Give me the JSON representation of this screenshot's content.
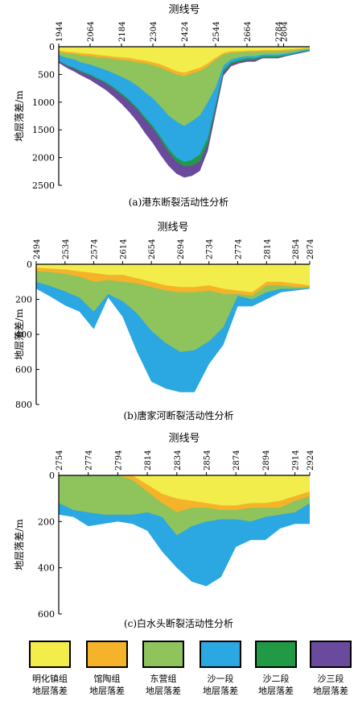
{
  "chart_data": [
    {
      "type": "area",
      "stacked": true,
      "title": "测线号",
      "caption": "(a)港东断裂活动性分析",
      "ylabel": "地层落差/m",
      "ylim": [
        0,
        2500
      ],
      "yticks": [
        0,
        500,
        1000,
        1500,
        2000,
        2500
      ],
      "xlim": [
        1944,
        2904
      ],
      "xticks": [
        1944,
        2064,
        2184,
        2304,
        2424,
        2544,
        2664,
        2784,
        2804
      ],
      "x": [
        1944,
        1974,
        2004,
        2034,
        2064,
        2094,
        2124,
        2154,
        2184,
        2214,
        2244,
        2274,
        2304,
        2334,
        2364,
        2394,
        2424,
        2454,
        2484,
        2514,
        2544,
        2574,
        2604,
        2634,
        2664,
        2694,
        2724,
        2754,
        2784,
        2814,
        2844,
        2874,
        2904
      ],
      "series": [
        {
          "name": "明化镇组地层落差",
          "key": "minghuazhen",
          "values": [
            70,
            90,
            100,
            120,
            130,
            150,
            160,
            180,
            190,
            200,
            230,
            250,
            280,
            320,
            380,
            440,
            470,
            420,
            380,
            300,
            200,
            110,
            80,
            80,
            70,
            70,
            60,
            60,
            60,
            50,
            40,
            30,
            20
          ]
        },
        {
          "name": "馆陶组地层落差",
          "key": "guantao",
          "values": [
            20,
            30,
            30,
            40,
            40,
            40,
            40,
            40,
            50,
            50,
            50,
            50,
            50,
            60,
            60,
            60,
            60,
            60,
            60,
            50,
            40,
            30,
            30,
            20,
            20,
            20,
            20,
            20,
            20,
            20,
            20,
            10,
            10
          ]
        },
        {
          "name": "东营组地层落差",
          "key": "dongying",
          "values": [
            60,
            80,
            100,
            130,
            150,
            180,
            220,
            260,
            300,
            360,
            420,
            520,
            600,
            700,
            800,
            850,
            900,
            860,
            800,
            650,
            500,
            200,
            120,
            90,
            80,
            80,
            60,
            60,
            60,
            50,
            40,
            30,
            20
          ]
        },
        {
          "name": "沙一段地层落差",
          "key": "shayi",
          "values": [
            100,
            130,
            150,
            160,
            180,
            200,
            220,
            250,
            300,
            350,
            400,
            450,
            500,
            550,
            600,
            650,
            650,
            700,
            700,
            650,
            300,
            80,
            50,
            50,
            40,
            40,
            30,
            30,
            30,
            30,
            20,
            20,
            10
          ]
        },
        {
          "name": "沙二段地层落差",
          "key": "shaer",
          "values": [
            10,
            10,
            20,
            20,
            20,
            20,
            20,
            30,
            30,
            30,
            30,
            40,
            40,
            50,
            60,
            70,
            80,
            100,
            130,
            100,
            60,
            40,
            30,
            30,
            30,
            30,
            20,
            20,
            20,
            10,
            10,
            10,
            10
          ]
        },
        {
          "name": "沙三段地层落差",
          "key": "shasan",
          "values": [
            30,
            40,
            50,
            60,
            80,
            100,
            120,
            140,
            160,
            190,
            220,
            250,
            270,
            280,
            250,
            220,
            200,
            190,
            170,
            130,
            100,
            60,
            40,
            30,
            30,
            30,
            20,
            20,
            20,
            10,
            10,
            10,
            10
          ]
        }
      ]
    },
    {
      "type": "area",
      "stacked": true,
      "title": "测线号",
      "caption": "(b)唐家河断裂活动性分析",
      "ylabel": "地层落差/m",
      "ylim": [
        0,
        800
      ],
      "yticks": [
        0,
        200,
        400,
        600,
        800
      ],
      "xlim": [
        2494,
        2874
      ],
      "xticks": [
        2494,
        2534,
        2574,
        2614,
        2654,
        2694,
        2734,
        2774,
        2814,
        2854,
        2874
      ],
      "x": [
        2494,
        2514,
        2534,
        2554,
        2574,
        2594,
        2614,
        2634,
        2654,
        2674,
        2694,
        2714,
        2734,
        2754,
        2774,
        2794,
        2814,
        2834,
        2854,
        2874
      ],
      "series": [
        {
          "name": "明化镇组地层落差",
          "key": "minghuazhen",
          "values": [
            20,
            25,
            30,
            40,
            50,
            60,
            60,
            80,
            100,
            120,
            130,
            130,
            120,
            140,
            150,
            160,
            100,
            100,
            110,
            120
          ]
        },
        {
          "name": "馆陶组地层落差",
          "key": "guantao",
          "values": [
            20,
            20,
            25,
            30,
            50,
            30,
            40,
            30,
            30,
            30,
            30,
            30,
            30,
            30,
            20,
            20,
            20,
            20,
            20,
            10
          ]
        },
        {
          "name": "东营组地层落差",
          "key": "dongying",
          "values": [
            60,
            80,
            100,
            120,
            170,
            80,
            110,
            170,
            250,
            300,
            340,
            330,
            290,
            190,
            10,
            20,
            40,
            20,
            10,
            5
          ]
        },
        {
          "name": "沙一段地层落差",
          "key": "shayi",
          "values": [
            40,
            60,
            80,
            80,
            100,
            20,
            90,
            220,
            290,
            260,
            230,
            240,
            130,
            100,
            60,
            40,
            40,
            20,
            10,
            5
          ]
        }
      ]
    },
    {
      "type": "area",
      "stacked": true,
      "title": "测线号",
      "caption": "(c)白水头断裂活动性分析",
      "ylabel": "地层落差/m",
      "ylim": [
        0,
        600
      ],
      "yticks": [
        0,
        200,
        400,
        600
      ],
      "xlim": [
        2754,
        2924
      ],
      "xticks": [
        2754,
        2774,
        2794,
        2814,
        2834,
        2854,
        2874,
        2894,
        2914,
        2924
      ],
      "x": [
        2754,
        2764,
        2774,
        2784,
        2794,
        2804,
        2814,
        2824,
        2834,
        2844,
        2854,
        2864,
        2874,
        2884,
        2894,
        2904,
        2914,
        2924
      ],
      "series": [
        {
          "name": "明化镇组地层落差",
          "key": "minghuazhen",
          "values": [
            0,
            0,
            0,
            0,
            0,
            0,
            40,
            80,
            100,
            110,
            120,
            130,
            130,
            120,
            120,
            110,
            90,
            70
          ]
        },
        {
          "name": "馆陶组地层落差",
          "key": "guantao",
          "values": [
            0,
            0,
            0,
            0,
            0,
            20,
            30,
            40,
            60,
            30,
            20,
            20,
            20,
            20,
            20,
            30,
            20,
            20
          ]
        },
        {
          "name": "东营组地层落差",
          "key": "dongying",
          "values": [
            120,
            150,
            160,
            170,
            170,
            150,
            90,
            60,
            100,
            80,
            60,
            40,
            40,
            60,
            40,
            30,
            50,
            30
          ]
        },
        {
          "name": "沙一段地层落差",
          "key": "shayi",
          "values": [
            50,
            30,
            60,
            40,
            30,
            40,
            80,
            150,
            140,
            240,
            280,
            250,
            120,
            80,
            100,
            60,
            50,
            90
          ]
        }
      ]
    }
  ],
  "legend": [
    {
      "key": "minghuazhen",
      "line1": "明化镇组",
      "line2": "地层落差",
      "color": "#f2ed4a"
    },
    {
      "key": "guantao",
      "line1": "馆陶组",
      "line2": "地层落差",
      "color": "#f5b329"
    },
    {
      "key": "dongying",
      "line1": "东营组",
      "line2": "地层落差",
      "color": "#8fc35c"
    },
    {
      "key": "shayi",
      "line1": "沙一段",
      "line2": "地层落差",
      "color": "#2ba7e2"
    },
    {
      "key": "shaer",
      "line1": "沙二段",
      "line2": "地层落差",
      "color": "#229944"
    },
    {
      "key": "shasan",
      "line1": "沙三段",
      "line2": "地层落差",
      "color": "#6a4a9c"
    }
  ]
}
